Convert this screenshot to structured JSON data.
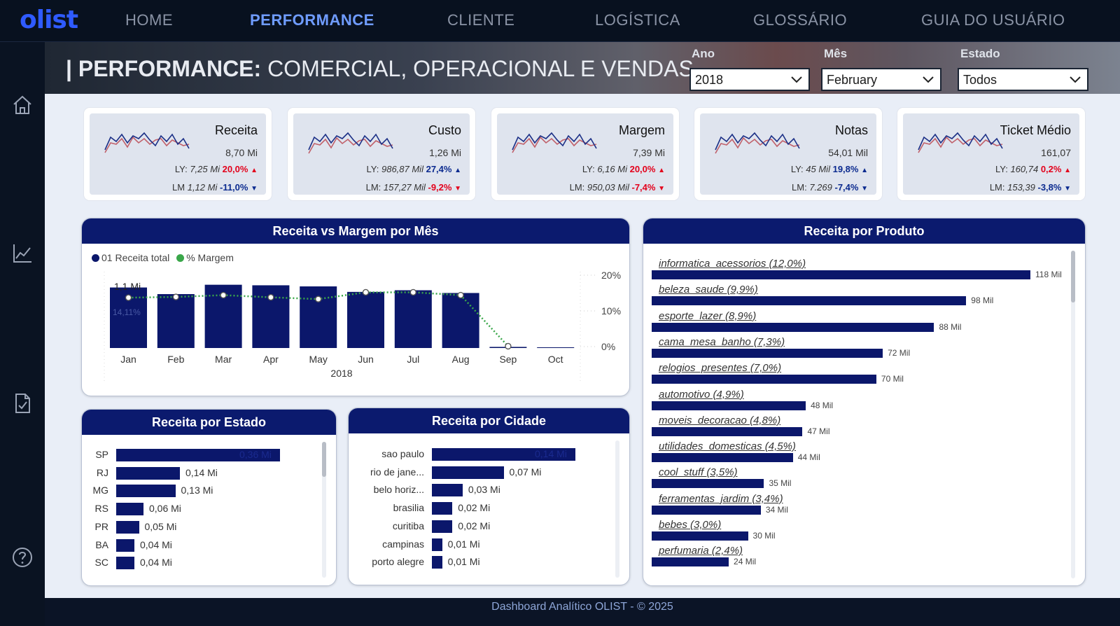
{
  "nav": {
    "logo": "olist",
    "items": [
      {
        "label": "HOME",
        "active": false
      },
      {
        "label": "PERFORMANCE",
        "active": true
      },
      {
        "label": "CLIENTE",
        "active": false
      },
      {
        "label": "LOGÍSTICA",
        "active": false
      },
      {
        "label": "GLOSSÁRIO",
        "active": false
      },
      {
        "label": "GUIA DO USUÁRIO",
        "active": false
      }
    ]
  },
  "sidebar": {
    "icons": [
      "home-icon",
      "line-chart-icon",
      "document-check-icon",
      "help-icon"
    ]
  },
  "banner": {
    "title_bold": "| PERFORMANCE:",
    "title_rest": " COMERCIAL, OPERACIONAL E VENDAS"
  },
  "filters": {
    "ano": {
      "label": "Ano",
      "value": "2018"
    },
    "mes": {
      "label": "Mês",
      "value": "February"
    },
    "estado": {
      "label": "Estado",
      "value": "Todos"
    }
  },
  "kpis": [
    {
      "title": "Receita",
      "value": "8,70 Mi",
      "ly_label": "LY:",
      "ly_value": "7,25 Mi",
      "ly_pct": "20,0%",
      "ly_dir": "up",
      "ly_color": "red",
      "lm_label": "LM",
      "lm_value": "1,12 Mi",
      "lm_pct": "-11,0%",
      "lm_dir": "down",
      "lm_color": "blue"
    },
    {
      "title": "Custo",
      "value": "1,26 Mi",
      "ly_label": "LY:",
      "ly_value": "986,87 Mil",
      "ly_pct": "27,4%",
      "ly_dir": "up",
      "ly_color": "blue",
      "lm_label": "LM:",
      "lm_value": "157,27 Mil",
      "lm_pct": "-9,2%",
      "lm_dir": "down",
      "lm_color": "red"
    },
    {
      "title": "Margem",
      "value": "7,39 Mi",
      "ly_label": "LY:",
      "ly_value": "6,16 Mi",
      "ly_pct": "20,0%",
      "ly_dir": "up",
      "ly_color": "red",
      "lm_label": "LM:",
      "lm_value": "950,03 Mil",
      "lm_pct": "-7,4%",
      "lm_dir": "down",
      "lm_color": "red"
    },
    {
      "title": "Notas",
      "value": "54,01 Mil",
      "ly_label": "LY:",
      "ly_value": "45 Mil",
      "ly_pct": "19,8%",
      "ly_dir": "up",
      "ly_color": "blue",
      "lm_label": "LM:",
      "lm_value": "7.269",
      "lm_pct": "-7,4%",
      "lm_dir": "down",
      "lm_color": "blue"
    },
    {
      "title": "Ticket Médio",
      "value": "161,07",
      "ly_label": "LY:",
      "ly_value": "160,74",
      "ly_pct": "0,2%",
      "ly_dir": "up",
      "ly_color": "red",
      "lm_label": "LM:",
      "lm_value": "153,39",
      "lm_pct": "-3,8%",
      "lm_dir": "down",
      "lm_color": "blue"
    }
  ],
  "panels": {
    "receita_margem": "Receita vs Margem por Mês",
    "estado": "Receita por Estado",
    "cidade": "Receita por Cidade",
    "produto": "Receita por Produto"
  },
  "chart_data": [
    {
      "type": "bar",
      "title": "Receita vs Margem por Mês",
      "xlabel": "2018",
      "categories": [
        "Jan",
        "Feb",
        "Mar",
        "Apr",
        "May",
        "Jun",
        "Jul",
        "Aug",
        "Sep",
        "Oct"
      ],
      "series": [
        {
          "name": "01 Receita total",
          "type": "bar",
          "values": [
            1.1,
            0.98,
            1.15,
            1.14,
            1.12,
            1.02,
            1.05,
            1.0,
            0.02,
            0.01
          ],
          "color": "#0b176b"
        },
        {
          "name": "% Margem",
          "type": "line",
          "values": [
            14.11,
            14.3,
            14.8,
            14.2,
            13.7,
            15.6,
            15.6,
            14.8,
            0.5,
            null
          ],
          "color": "#3aa74a"
        }
      ],
      "data_labels": {
        "Jan_receita": "1,1 Mi",
        "Jan_margem": "14,11%"
      },
      "y2_ticks": [
        "20%",
        "10%",
        "0%"
      ],
      "y2lim": [
        0,
        20
      ],
      "legend": "top-left"
    },
    {
      "type": "bar",
      "orientation": "horizontal",
      "title": "Receita por Estado",
      "categories": [
        "SP",
        "RJ",
        "MG",
        "RS",
        "PR",
        "BA",
        "SC"
      ],
      "values": [
        0.36,
        0.14,
        0.13,
        0.06,
        0.05,
        0.04,
        0.04
      ],
      "labels": [
        "0,36 Mi",
        "0,14 Mi",
        "0,13 Mi",
        "0,06 Mi",
        "0,05 Mi",
        "0,04 Mi",
        "0,04 Mi"
      ]
    },
    {
      "type": "bar",
      "orientation": "horizontal",
      "title": "Receita por Cidade",
      "categories": [
        "sao paulo",
        "rio de jane...",
        "belo horiz...",
        "brasilia",
        "curitiba",
        "campinas",
        "porto alegre"
      ],
      "values": [
        0.14,
        0.07,
        0.03,
        0.02,
        0.02,
        0.01,
        0.01
      ],
      "labels": [
        "0,14 Mi",
        "0,07 Mi",
        "0,03 Mi",
        "0,02 Mi",
        "0,02 Mi",
        "0,01 Mi",
        "0,01 Mi"
      ]
    },
    {
      "type": "bar",
      "orientation": "horizontal",
      "title": "Receita por Produto",
      "categories": [
        "informatica_acessorios (12,0%)",
        "beleza_saude (9,9%)",
        "esporte_lazer (8,9%)",
        "cama_mesa_banho (7,3%)",
        "relogios_presentes (7,0%)",
        "automotivo (4,9%)",
        "moveis_decoracao (4,8%)",
        "utilidades_domesticas (4,5%)",
        "cool_stuff (3,5%)",
        "ferramentas_jardim (3,4%)",
        "bebes (3,0%)",
        "perfumaria (2,4%)"
      ],
      "values": [
        118,
        98,
        88,
        72,
        70,
        48,
        47,
        44,
        35,
        34,
        30,
        24
      ],
      "labels": [
        "118 Mil",
        "98 Mil",
        "88 Mil",
        "72 Mil",
        "70 Mil",
        "48 Mil",
        "47 Mil",
        "44 Mil",
        "35 Mil",
        "34 Mil",
        "30 Mil",
        "24 Mil"
      ]
    }
  ],
  "footer": "Dashboard Analítico OLIST - © 2025"
}
